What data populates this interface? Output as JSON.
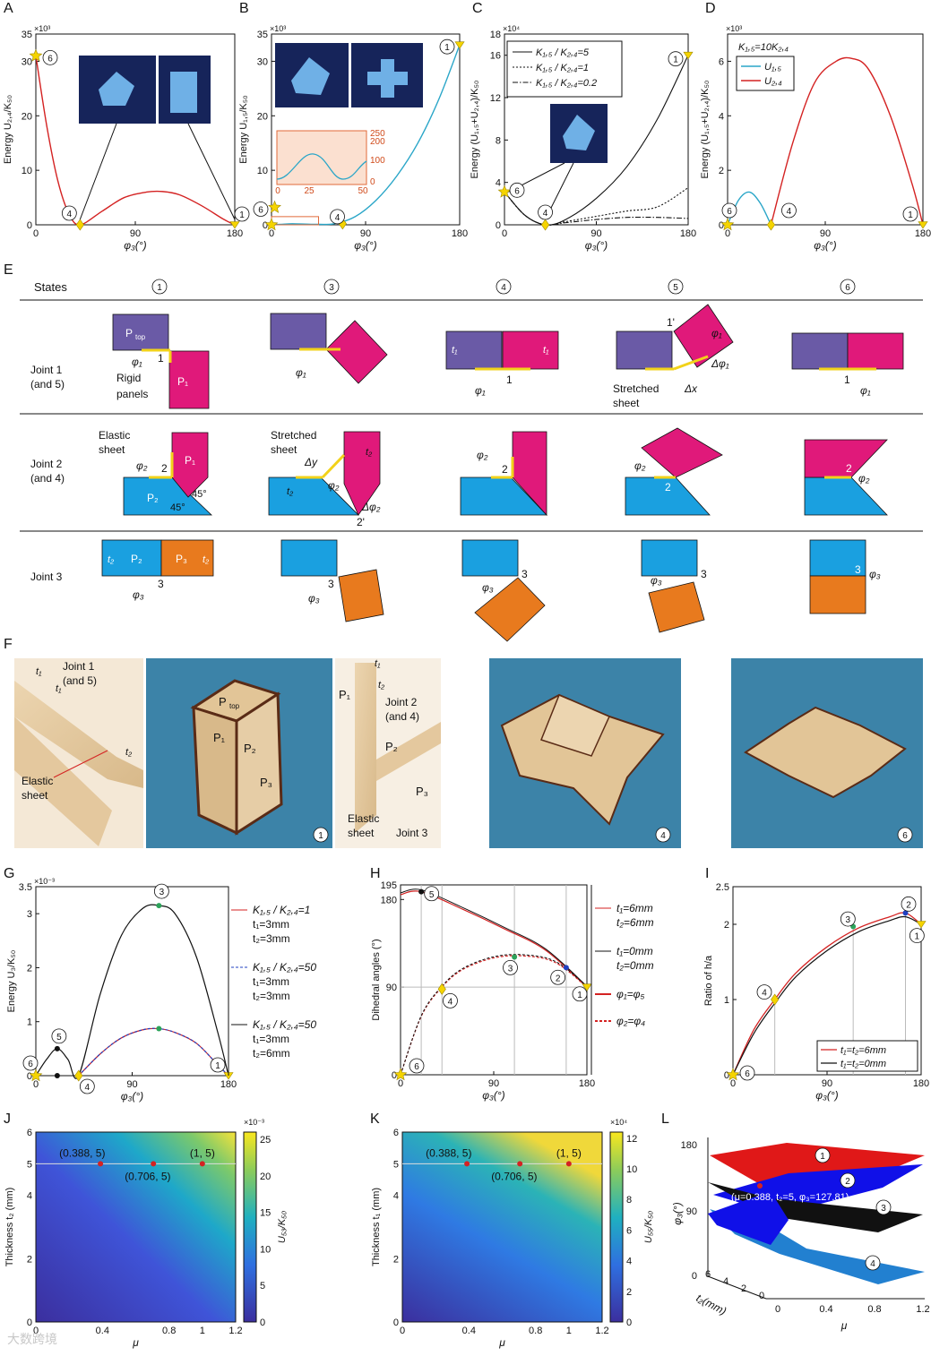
{
  "panels": {
    "A": {
      "label": "A",
      "ylabel": "Energy U₂,₄/K₅₀",
      "yexp": "×10³",
      "xlabel": "φ₃(°)",
      "yticks": [
        "0",
        "10",
        "20",
        "30",
        "35"
      ],
      "xticks": [
        "0",
        "90",
        "180"
      ]
    },
    "B": {
      "label": "B",
      "ylabel": "Energy U₁,₅/K₅₀",
      "yexp": "×10³",
      "xlabel": "φ₃(°)",
      "yticks": [
        "0",
        "10",
        "20",
        "30",
        "35"
      ],
      "xticks": [
        "0",
        "90",
        "180"
      ],
      "inset_yticks": [
        "0",
        "100",
        "200",
        "250"
      ],
      "inset_xticks": [
        "0",
        "25",
        "50"
      ]
    },
    "C": {
      "label": "C",
      "ylabel": "Energy (U₁,₅+U₂,₄)/K₅₀",
      "yexp": "×10⁴",
      "xlabel": "φ₃(°)",
      "yticks": [
        "0",
        "4",
        "8",
        "12",
        "16",
        "18"
      ],
      "xticks": [
        "0",
        "90",
        "180"
      ],
      "legend": [
        "K₁,₅ / K₂,₄=5",
        "K₁,₅ / K₂,₄=1",
        "K₁,₅ / K₂,₄=0.2"
      ]
    },
    "D": {
      "label": "D",
      "ylabel": "Energy (U₁,₅+U₂,₄)/K₅₀",
      "yexp": "×10³",
      "xlabel": "φ₃(°)",
      "yticks": [
        "0",
        "2",
        "4",
        "6"
      ],
      "xticks": [
        "0",
        "90",
        "180"
      ],
      "note": "K₁,₅=10K₂,₄",
      "legend": [
        "U₁,₅",
        "U₂,₄"
      ]
    },
    "E": {
      "label": "E",
      "states_header": "States",
      "state_cols": [
        "①",
        "③",
        "④",
        "⑤",
        "⑥"
      ],
      "rows": [
        "Joint 1\n(and 5)",
        "Joint 2\n(and 4)",
        "Joint 3"
      ],
      "row_labels": [
        [
          "Joint 1",
          "(and 5)"
        ],
        [
          "Joint 2",
          "(and 4)"
        ],
        [
          "Joint 3",
          ""
        ]
      ],
      "annot": {
        "ptop": "P",
        "ptop_sub": "top",
        "p1": "P₁",
        "p2": "P₂",
        "p3": "P₃",
        "rigid": "Rigid",
        "panels": "panels",
        "elastic": "Elastic",
        "sheet": "sheet",
        "stretched": "Stretched",
        "stretched_sheet": "sheet",
        "phi1": "φ₁",
        "phi2": "φ₂",
        "phi3": "φ₃",
        "dphi1": "Δφ₁",
        "dphi2": "Δφ₂",
        "dx": "Δx",
        "dy": "Δy",
        "deg45": "45°",
        "one": "1",
        "two": "2",
        "three": "3",
        "onep": "1'",
        "twop": "2'",
        "t1": "t₁",
        "t2": "t₂"
      }
    },
    "F": {
      "label": "F",
      "annot": {
        "joint1": "Joint 1",
        "and5": "(and 5)",
        "joint2": "Joint 2",
        "and4": "(and 4)",
        "joint3": "Joint 3",
        "elastic": "Elastic",
        "sheet": "sheet",
        "elastic_sheet": "Elastic sheet",
        "ptop": "P",
        "ptop_sub": "top",
        "p1": "P₁",
        "p2": "P₂",
        "p3": "P₃",
        "t1": "t₁",
        "t2": "t₂",
        "s1": "①",
        "s4": "④",
        "s6": "⑥"
      }
    },
    "G": {
      "label": "G",
      "ylabel": "Energy U₃/K₅₀",
      "yexp": "×10⁻³",
      "xlabel": "φ₃(°)",
      "yticks": [
        "0",
        "1",
        "2",
        "3",
        "3.5"
      ],
      "xticks": [
        "0",
        "90",
        "180"
      ],
      "legend": [
        [
          "K₁,₅ / K₂,₄=1",
          "t₁=3mm",
          "t₂=3mm"
        ],
        [
          "K₁,₅ / K₂,₄=50",
          "t₁=3mm",
          "t₂=3mm"
        ],
        [
          "K₁,₅ / K₂,₄=50",
          "t₁=3mm",
          "t₂=6mm"
        ]
      ]
    },
    "H": {
      "label": "H",
      "ylabel": "Dihedral angles (°)",
      "xlabel": "φ₃(°)",
      "yticks": [
        "0",
        "90",
        "180",
        "195"
      ],
      "xticks": [
        "0",
        "90",
        "180"
      ],
      "legend": [
        [
          "t₁=6mm",
          "t₂=6mm"
        ],
        [
          "t₁=0mm",
          "t₂=0mm"
        ],
        [
          "φ₁=φ₅"
        ],
        [
          "φ₂=φ₄"
        ]
      ]
    },
    "I": {
      "label": "I",
      "ylabel": "Ratio of h/a",
      "xlabel": "φ₃(°)",
      "yticks": [
        "0",
        "1",
        "2",
        "2.5"
      ],
      "xticks": [
        "0",
        "90",
        "180"
      ],
      "legend": [
        "t₁=t₂=6mm",
        "t₁=t₂=0mm"
      ]
    },
    "J": {
      "label": "J",
      "ylabel": "Thickness t₂ (mm)",
      "xlabel": "μ",
      "cblabel": "U₅₃/K₅₀",
      "cbexp": "×10⁻³",
      "yticks": [
        "0",
        "2",
        "4",
        "5",
        "6"
      ],
      "xticks": [
        "0",
        "0.4",
        "0.8",
        "1",
        "1.2"
      ],
      "cbticks": [
        "0",
        "5",
        "10",
        "15",
        "20",
        "25"
      ],
      "points": [
        "(0.388, 5)",
        "(0.706, 5)",
        "(1, 5)"
      ]
    },
    "K": {
      "label": "K",
      "ylabel": "Thickness t₁ (mm)",
      "xlabel": "μ",
      "cblabel": "U₅₅/K₅₀",
      "cbexp": "×10⁴",
      "yticks": [
        "0",
        "2",
        "4",
        "5",
        "6"
      ],
      "xticks": [
        "0",
        "0.4",
        "0.8",
        "1",
        "1.2"
      ],
      "cbticks": [
        "0",
        "2",
        "4",
        "6",
        "8",
        "10",
        "12"
      ],
      "points": [
        "(0.388, 5)",
        "(0.706, 5)",
        "(1, 5)"
      ]
    },
    "L": {
      "label": "L",
      "ylabel": "φ₃(°)",
      "xlabel": "μ",
      "zlabel": "t₂(mm)",
      "yticks": [
        "0",
        "90",
        "180"
      ],
      "xticks": [
        "0",
        "0.4",
        "0.8",
        "1.2"
      ],
      "zticks": [
        "0",
        "2",
        "4",
        "6"
      ],
      "note": "(μ=0.388, t₂=5, φ₃=127.81)",
      "surfaces": [
        "①",
        "②",
        "③",
        "④"
      ]
    }
  },
  "markers": {
    "s1": "①",
    "s2": "②",
    "s3": "③",
    "s4": "④",
    "s5": "⑤",
    "s6": "⑥"
  },
  "watermark": "大数跨境",
  "colors": {
    "red": "#d42222",
    "cyan": "#2aa6c8",
    "magenta": "#e0197a",
    "purple": "#6a5aa6",
    "blue": "#1aa0e0",
    "orange": "#e87a1e",
    "yellow": "#f5d400",
    "photo": "#3c83a8"
  },
  "chart_data": [
    {
      "type": "line",
      "panel": "A",
      "title": "",
      "xlabel": "φ₃(°)",
      "ylabel": "Energy U₂,₄/K₅₀",
      "xlim": [
        0,
        180
      ],
      "ylim": [
        0,
        35000
      ],
      "series": [
        {
          "x": [
            0,
            10,
            20,
            30,
            40,
            60,
            80,
            100,
            115,
            130,
            150,
            170,
            180
          ],
          "y": [
            31000,
            18000,
            8000,
            2000,
            0,
            2500,
            5000,
            6000,
            6100,
            5500,
            3500,
            1000,
            0
          ]
        }
      ]
    },
    {
      "type": "line",
      "panel": "B",
      "title": "",
      "xlabel": "φ₃(°)",
      "ylabel": "Energy U₁,₅/K₅₀",
      "xlim": [
        0,
        180
      ],
      "ylim": [
        0,
        35000
      ],
      "series": [
        {
          "x": [
            0,
            10,
            20,
            40,
            60,
            80,
            100,
            120,
            140,
            160,
            180
          ],
          "y": [
            0,
            100,
            200,
            100,
            200,
            1500,
            4500,
            9000,
            15000,
            23000,
            33000
          ]
        }
      ]
    },
    {
      "type": "line",
      "panel": "C",
      "title": "",
      "xlabel": "φ₃(°)",
      "ylabel": "Energy (U₁,₅+U₂,₄)/K₅₀",
      "xlim": [
        0,
        180
      ],
      "ylim": [
        0,
        180000
      ],
      "series": [
        {
          "name": "K₁,₅ / K₂,₄=5",
          "x": [
            0,
            20,
            40,
            60,
            90,
            120,
            150,
            180
          ],
          "y": [
            31000,
            9000,
            0,
            5000,
            25000,
            55000,
            100000,
            160000
          ]
        },
        {
          "name": "K₁,₅ / K₂,₄=1",
          "x": [
            0,
            20,
            40,
            60,
            90,
            120,
            150,
            180
          ],
          "y": [
            31000,
            9000,
            0,
            3000,
            8000,
            13000,
            17000,
            35000
          ]
        },
        {
          "name": "K₁,₅ / K₂,₄=0.2",
          "x": [
            0,
            20,
            40,
            60,
            90,
            120,
            150,
            180
          ],
          "y": [
            31000,
            9000,
            0,
            2000,
            5000,
            7000,
            7000,
            6000
          ]
        }
      ]
    },
    {
      "type": "line",
      "panel": "D",
      "title": "",
      "xlabel": "φ₃(°)",
      "ylabel": "Energy (U₁,₅+U₂,₄)/K₅₀",
      "xlim": [
        0,
        180
      ],
      "ylim": [
        0,
        7000
      ],
      "series": [
        {
          "name": "U₁,₅",
          "x": [
            0,
            10,
            20,
            30,
            40
          ],
          "y": [
            0,
            900,
            1200,
            800,
            0
          ]
        },
        {
          "name": "U₂,₄",
          "x": [
            40,
            60,
            80,
            100,
            115,
            130,
            150,
            170,
            180
          ],
          "y": [
            0,
            3000,
            5200,
            6000,
            6100,
            5700,
            4000,
            1500,
            0
          ]
        }
      ]
    },
    {
      "type": "line",
      "panel": "G",
      "title": "",
      "xlabel": "φ₃(°)",
      "ylabel": "Energy U₃/K₅₀",
      "xlim": [
        0,
        180
      ],
      "ylim": [
        0,
        0.0035
      ],
      "series": [
        {
          "name": "K₁,₅ / K₂,₄=1, t₁=3mm, t₂=3mm",
          "x": [
            40,
            60,
            80,
            100,
            115,
            130,
            150,
            170,
            180
          ],
          "y": [
            0,
            0.0004,
            0.0007,
            0.00085,
            0.00087,
            0.0008,
            0.0006,
            0.0002,
            0
          ]
        },
        {
          "name": "K₁,₅ / K₂,₄=50, t₁=3mm, t₂=3mm",
          "x": [
            40,
            60,
            80,
            100,
            115,
            130,
            150,
            170,
            180
          ],
          "y": [
            0,
            0.0004,
            0.0007,
            0.00085,
            0.00087,
            0.0008,
            0.0006,
            0.0002,
            0
          ]
        },
        {
          "name": "K₁,₅ / K₂,₄=50, t₁=3mm, t₂=6mm",
          "x": [
            0,
            10,
            20,
            30,
            40,
            60,
            80,
            100,
            115,
            130,
            150,
            170,
            180
          ],
          "y": [
            0,
            0.0003,
            0.0005,
            0.0003,
            0,
            0.0015,
            0.0026,
            0.0031,
            0.00315,
            0.003,
            0.0022,
            0.0008,
            0
          ]
        }
      ]
    },
    {
      "type": "line",
      "panel": "H",
      "title": "",
      "xlabel": "φ₃(°)",
      "ylabel": "Dihedral angles (°)",
      "xlabel2": "",
      "xlim": [
        0,
        180
      ],
      "ylim": [
        0,
        195
      ],
      "series": [
        {
          "name": "φ₁=φ₅, t₁=6mm, t₂=6mm",
          "x": [
            0,
            20,
            60,
            100,
            140,
            180
          ],
          "y": [
            185,
            188,
            170,
            150,
            128,
            90
          ]
        },
        {
          "name": "φ₂=φ₄, t₁=6mm, t₂=6mm",
          "x": [
            0,
            20,
            40,
            60,
            90,
            120,
            150,
            180
          ],
          "y": [
            0,
            60,
            90,
            108,
            120,
            122,
            115,
            90
          ]
        }
      ]
    },
    {
      "type": "line",
      "panel": "I",
      "title": "",
      "xlabel": "φ₃(°)",
      "ylabel": "Ratio of h/a",
      "xlim": [
        0,
        180
      ],
      "ylim": [
        0,
        2.5
      ],
      "series": [
        {
          "name": "t₁=t₂=6mm",
          "x": [
            0,
            20,
            40,
            60,
            90,
            120,
            150,
            165,
            180
          ],
          "y": [
            0,
            0.6,
            1.0,
            1.35,
            1.7,
            1.95,
            2.1,
            2.15,
            2.0
          ]
        },
        {
          "name": "t₁=t₂=0mm",
          "x": [
            0,
            20,
            40,
            60,
            90,
            120,
            150,
            165,
            180
          ],
          "y": [
            0,
            0.55,
            0.95,
            1.3,
            1.65,
            1.9,
            2.05,
            2.1,
            2.0
          ]
        }
      ]
    },
    {
      "type": "heatmap",
      "panel": "J",
      "xlabel": "μ",
      "ylabel": "Thickness t₂ (mm)",
      "xlim": [
        0,
        1.2
      ],
      "ylim": [
        0,
        6
      ],
      "clim": [
        0,
        0.025
      ],
      "points": [
        [
          0.388,
          5
        ],
        [
          0.706,
          5
        ],
        [
          1,
          5
        ]
      ]
    },
    {
      "type": "heatmap",
      "panel": "K",
      "xlabel": "μ",
      "ylabel": "Thickness t₁ (mm)",
      "xlim": [
        0,
        1.2
      ],
      "ylim": [
        0,
        6
      ],
      "clim": [
        0,
        120000
      ],
      "points": [
        [
          0.388,
          5
        ],
        [
          0.706,
          5
        ],
        [
          1,
          5
        ]
      ]
    }
  ]
}
